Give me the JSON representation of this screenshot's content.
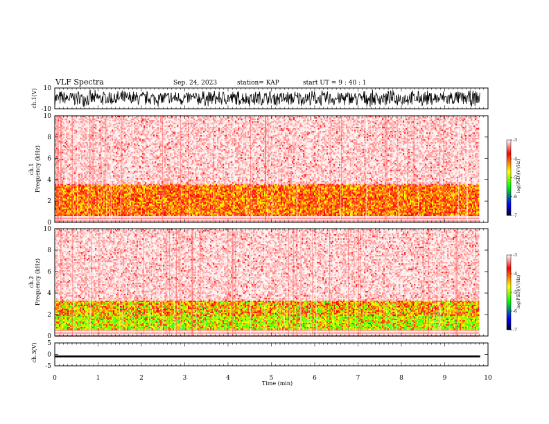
{
  "header": {
    "title": "VLF Spectra",
    "date": "Sep. 24, 2023",
    "station": "station= KAP",
    "start_ut": "start  UT  =   9 : 40 : 1"
  },
  "chart_data": [
    {
      "type": "line",
      "name": "waveform ch.1",
      "ylabel": "ch.1(V)",
      "ylim": [
        -10,
        10
      ],
      "y_tick_labels": [
        "10",
        "-10"
      ],
      "xlim": [
        0,
        10
      ],
      "data_extent_min": 9.82,
      "signal_amplitude_fraction_of_range": 0.85
    },
    {
      "type": "heatmap",
      "name": "spectrogram ch.1",
      "ylabel_line1": "ch.1",
      "ylabel_line2": "Frequency (kHz)",
      "ylim": [
        0,
        10
      ],
      "y_ticks": [
        "0",
        "2",
        "4",
        "6",
        "8",
        "10"
      ],
      "xlim": [
        0,
        10
      ],
      "data_extent_min": 9.82,
      "intensity_bands_kHz": [
        {
          "from": 0.0,
          "to": 0.7,
          "level": "white-pink striations"
        },
        {
          "from": 0.7,
          "to": 3.6,
          "level": "red-yellow, around -4 to -5"
        },
        {
          "from": 3.6,
          "to": 10.0,
          "level": "light pink, around -3"
        }
      ],
      "colorbar": {
        "label": "log(PSD)(V²/Hz)",
        "ticks": [
          "-3",
          "-4",
          "-5",
          "-6",
          "-7"
        ],
        "colors": [
          "#ffffff",
          "#ff0000",
          "#ffff00",
          "#00ff00",
          "#0000ff",
          "#000033"
        ]
      }
    },
    {
      "type": "heatmap",
      "name": "spectrogram ch.2",
      "ylabel_line1": "ch.2",
      "ylabel_line2": "Frequency (kHz)",
      "ylim": [
        0,
        10
      ],
      "y_ticks": [
        "0",
        "2",
        "4",
        "6",
        "8",
        "10"
      ],
      "xlim": [
        0,
        10
      ],
      "data_extent_min": 9.82,
      "intensity_bands_kHz": [
        {
          "from": 0.0,
          "to": 0.6,
          "level": "white-pink striations"
        },
        {
          "from": 0.6,
          "to": 2.0,
          "level": "green, around -5"
        },
        {
          "from": 2.0,
          "to": 3.3,
          "level": "yellow-green-red"
        },
        {
          "from": 3.3,
          "to": 10.0,
          "level": "light pink, around -3"
        }
      ],
      "colorbar": {
        "label": "log(PSD)(V²/Hz)",
        "ticks": [
          "-3",
          "-4",
          "-5",
          "-6",
          "-7"
        ],
        "colors": [
          "#ffffff",
          "#ff0000",
          "#ffff00",
          "#00ff00",
          "#0000ff",
          "#000033"
        ]
      }
    },
    {
      "type": "line",
      "name": "waveform ch.3",
      "ylabel": "ch.3(V)",
      "ylim": [
        -5,
        5
      ],
      "y_tick_labels": [
        "5",
        "0",
        "-5"
      ],
      "xlim": [
        0,
        10
      ],
      "data_extent_min": 9.82,
      "signal_level_V": -0.9,
      "signal_thickness_V": 0.8
    }
  ],
  "x_axis": {
    "label": "Time (min)",
    "ticks": [
      "0",
      "1",
      "2",
      "3",
      "4",
      "5",
      "6",
      "7",
      "8",
      "9",
      "10"
    ]
  }
}
